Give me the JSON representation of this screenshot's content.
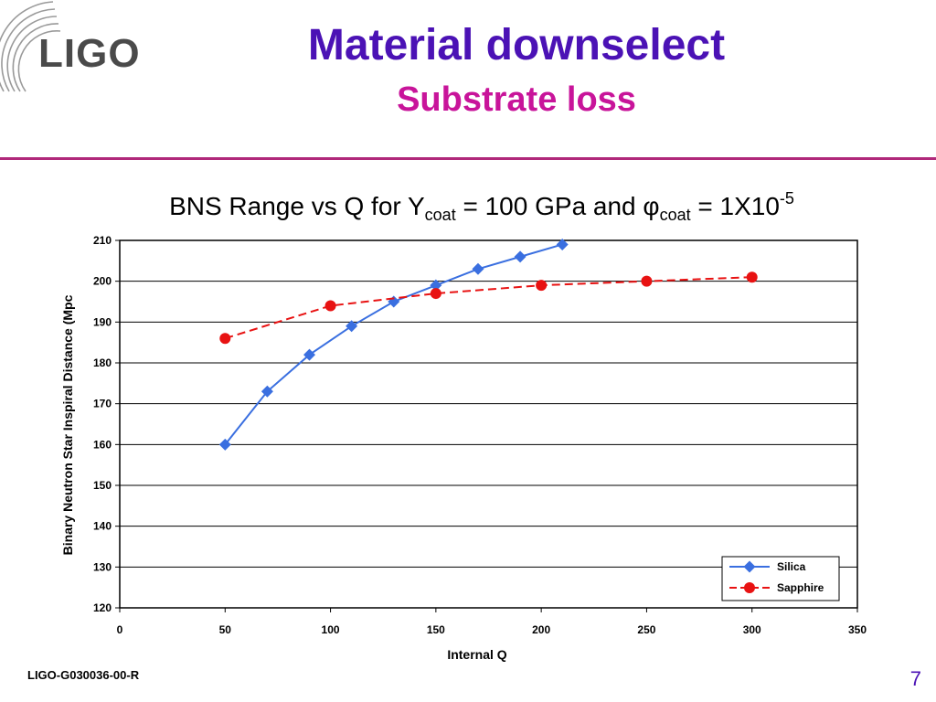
{
  "header": {
    "logo_text": "LIGO",
    "title": "Material downselect",
    "subtitle": "Substrate loss"
  },
  "chart_title": {
    "part1": "BNS Range vs Q for Y",
    "sub1": "coat",
    "part2": " = 100 GPa and ",
    "phi": "φ",
    "sub2": "coat",
    "part3": " = 1X10",
    "sup": "-5"
  },
  "footer": {
    "doc_id": "LIGO-G030036-00-R",
    "page": "7"
  },
  "colors": {
    "title": "#4b12b5",
    "subtitle": "#c8149a",
    "rule": "#b0287a",
    "silica": "#3a6fe0",
    "sapphire": "#e81212"
  },
  "chart_data": {
    "type": "line",
    "title": "BNS Range vs Q for Ycoat = 100 GPa and φcoat = 1X10-5",
    "xlabel": "Internal Q",
    "ylabel": "Binary Neutron Star Inspiral Distance (Mpc",
    "xlim": [
      0,
      350
    ],
    "ylim": [
      120,
      210
    ],
    "xticks": [
      0,
      50,
      100,
      150,
      200,
      250,
      300,
      350
    ],
    "yticks": [
      120,
      130,
      140,
      150,
      160,
      170,
      180,
      190,
      200,
      210
    ],
    "grid": "horizontal",
    "legend": "bottom-right",
    "series": [
      {
        "name": "Silica",
        "marker": "diamond",
        "line": "solid",
        "x": [
          50,
          70,
          90,
          110,
          130,
          150,
          170,
          190,
          210
        ],
        "y": [
          160,
          173,
          182,
          189,
          195,
          199,
          203,
          206,
          209
        ]
      },
      {
        "name": "Sapphire",
        "marker": "circle",
        "line": "dashed",
        "x": [
          50,
          100,
          150,
          200,
          250,
          300
        ],
        "y": [
          186,
          194,
          197,
          199,
          200,
          201
        ]
      }
    ]
  }
}
